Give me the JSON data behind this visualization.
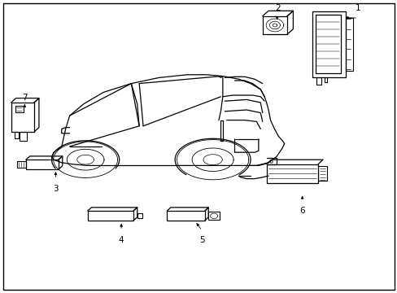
{
  "background_color": "#ffffff",
  "border_color": "#000000",
  "line_color": "#000000",
  "text_color": "#000000",
  "fig_width": 4.89,
  "fig_height": 3.6,
  "dpi": 100,
  "car": {
    "body_outline_x": [
      0.13,
      0.14,
      0.16,
      0.19,
      0.22,
      0.25,
      0.28,
      0.32,
      0.36,
      0.4,
      0.44,
      0.48,
      0.52,
      0.56,
      0.58,
      0.6,
      0.62,
      0.63,
      0.64,
      0.65,
      0.66,
      0.67,
      0.68,
      0.69,
      0.7,
      0.71,
      0.72,
      0.73,
      0.73
    ],
    "body_outline_y": [
      0.52,
      0.5,
      0.48,
      0.46,
      0.45,
      0.44,
      0.44,
      0.43,
      0.42,
      0.42,
      0.41,
      0.41,
      0.41,
      0.41,
      0.41,
      0.41,
      0.42,
      0.42,
      0.43,
      0.44,
      0.45,
      0.46,
      0.47,
      0.48,
      0.49,
      0.5,
      0.51,
      0.52,
      0.54
    ]
  }
}
